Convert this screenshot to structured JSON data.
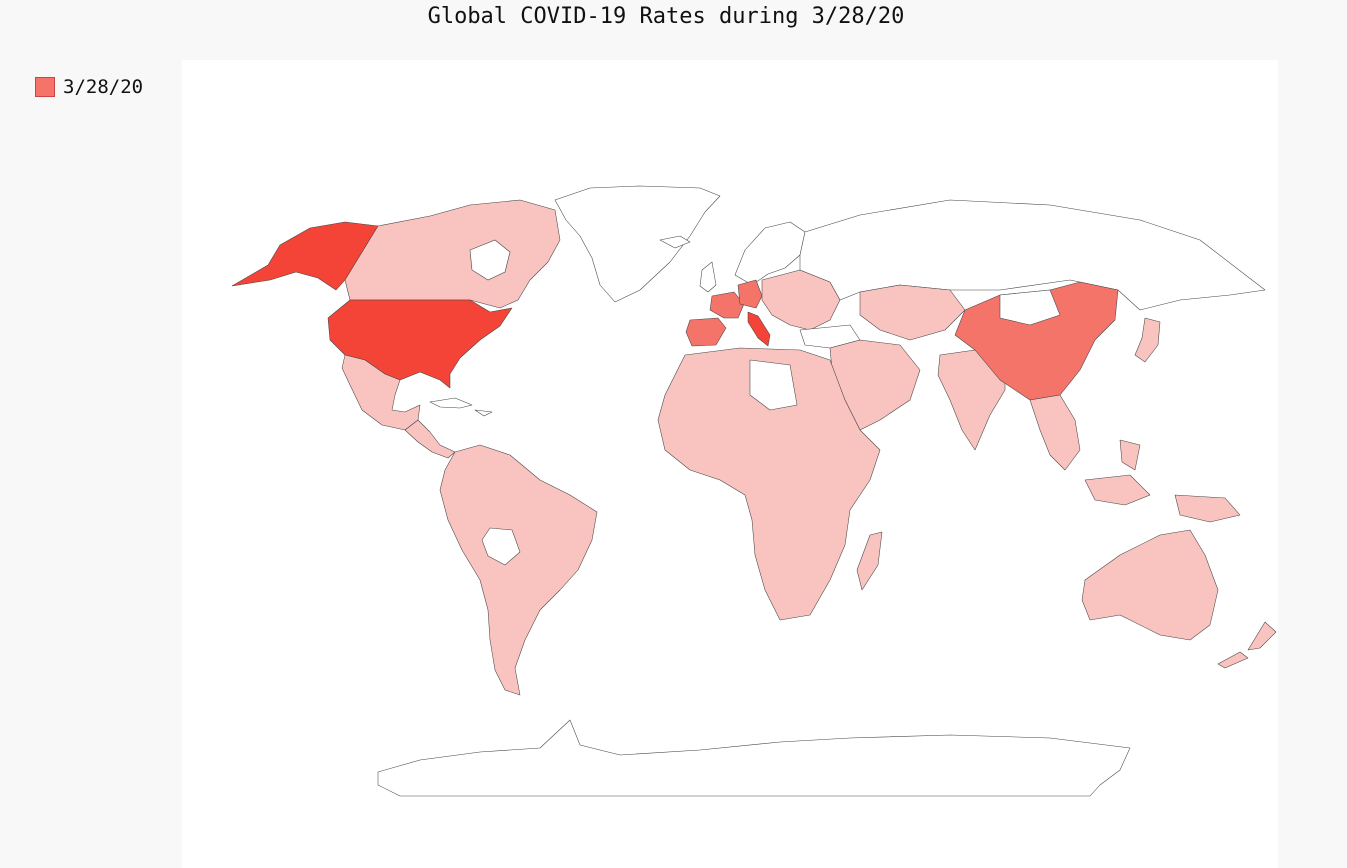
{
  "title": "Global COVID-19 Rates during 3/28/20",
  "legend": {
    "label": "3/28/20",
    "swatch_color": "#f4746a"
  },
  "colors": {
    "background": "#f8f8f8",
    "map_panel": "#ffffff",
    "low": "#f9c3bf",
    "medium": "#f58a80",
    "high": "#f4746a",
    "very_high": "#f44437",
    "no_data": "#ffffff"
  },
  "chart_data": {
    "type": "choropleth-map",
    "title": "Global COVID-19 Rates during 3/28/20",
    "legend": [
      "3/28/20"
    ],
    "regions": [
      {
        "name": "Alaska",
        "level": "very_high"
      },
      {
        "name": "United States",
        "level": "very_high"
      },
      {
        "name": "Canada",
        "level": "low"
      },
      {
        "name": "Mexico",
        "level": "low"
      },
      {
        "name": "Central America",
        "level": "low"
      },
      {
        "name": "South America",
        "level": "low"
      },
      {
        "name": "Bolivia",
        "level": "no_data"
      },
      {
        "name": "Greenland",
        "level": "no_data"
      },
      {
        "name": "Spain",
        "level": "high"
      },
      {
        "name": "France",
        "level": "high"
      },
      {
        "name": "Germany",
        "level": "high"
      },
      {
        "name": "Italy",
        "level": "very_high"
      },
      {
        "name": "Europe (other)",
        "level": "low"
      },
      {
        "name": "Russia",
        "level": "no_data"
      },
      {
        "name": "Kazakhstan",
        "level": "low"
      },
      {
        "name": "China",
        "level": "high"
      },
      {
        "name": "Middle East",
        "level": "low"
      },
      {
        "name": "India",
        "level": "low"
      },
      {
        "name": "Southeast Asia",
        "level": "low"
      },
      {
        "name": "Japan",
        "level": "low"
      },
      {
        "name": "Africa",
        "level": "low"
      },
      {
        "name": "Libya",
        "level": "no_data"
      },
      {
        "name": "Madagascar",
        "level": "low"
      },
      {
        "name": "Australia",
        "level": "low"
      },
      {
        "name": "New Zealand",
        "level": "low"
      },
      {
        "name": "Antarctica",
        "level": "no_data"
      }
    ]
  }
}
